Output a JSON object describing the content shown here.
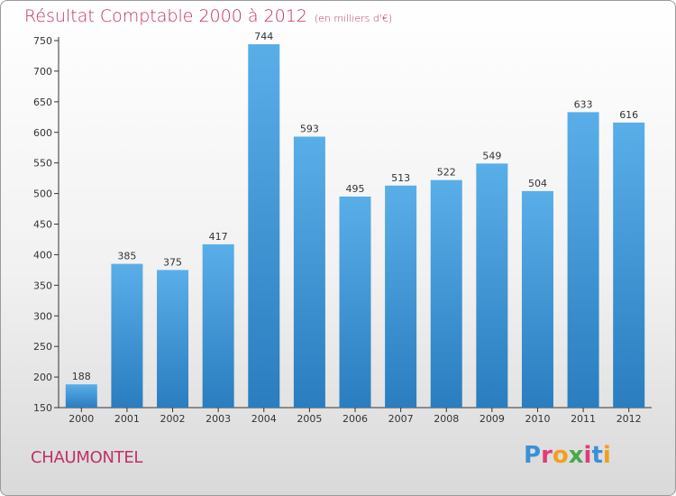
{
  "header": {
    "title": "Résultat Comptable 2000 à 2012",
    "subtitle": "(en milliers d'€)"
  },
  "footer": {
    "city": "CHAUMONTEL",
    "logo": "Proxiti"
  },
  "colors": {
    "title": "#c0306a",
    "bar_top": "#5aaee8",
    "bar_bottom": "#2a7dbf",
    "logo_letters": [
      "#3d8fd8",
      "#e03c7a",
      "#f0a020",
      "#4aa84a",
      "#e03c7a",
      "#3d8fd8",
      "#f0a020"
    ]
  },
  "chart_data": {
    "type": "bar",
    "title": "Résultat Comptable 2000 à 2012",
    "xlabel": "",
    "ylabel": "",
    "categories": [
      "2000",
      "2001",
      "2002",
      "2003",
      "2004",
      "2005",
      "2006",
      "2007",
      "2008",
      "2009",
      "2010",
      "2011",
      "2012"
    ],
    "values": [
      188,
      385,
      375,
      417,
      744,
      593,
      495,
      513,
      522,
      549,
      504,
      633,
      616
    ],
    "ylim": [
      150,
      750
    ],
    "yticks": [
      150,
      200,
      250,
      300,
      350,
      400,
      450,
      500,
      550,
      600,
      650,
      700,
      750
    ],
    "grid": false,
    "legend": "none"
  }
}
